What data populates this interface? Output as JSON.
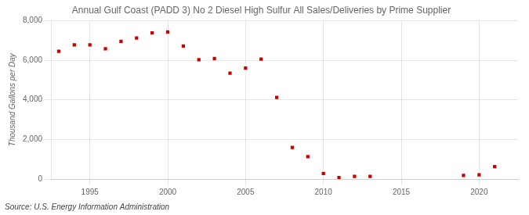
{
  "chart_data": {
    "type": "scatter",
    "title": "Annual Gulf Coast (PADD 3) No 2 Diesel High Sulfur All Sales/Deliveries by Prime Supplier",
    "y_label": "Thousand Gallons per Day",
    "annotations": [
      "Source: U.S. Energy Information Administration"
    ],
    "x": [
      1993,
      1994,
      1995,
      1996,
      1997,
      1998,
      1999,
      2000,
      2001,
      2002,
      2003,
      2004,
      2005,
      2006,
      2007,
      2008,
      2009,
      2010,
      2011,
      2012,
      2013,
      2019,
      2020,
      2021
    ],
    "values": [
      6450,
      6780,
      6780,
      6580,
      6950,
      7120,
      7380,
      7430,
      6720,
      6030,
      6090,
      5350,
      5600,
      6060,
      4120,
      1590,
      1130,
      285,
      70,
      130,
      130,
      185,
      215,
      630
    ],
    "color": "#cc0000",
    "marker": "square",
    "xlim": [
      1992.5,
      2022.5
    ],
    "xticks": [
      1995,
      2000,
      2005,
      2010,
      2015,
      2020
    ],
    "ylim": [
      0,
      8000
    ],
    "yticks": [
      0,
      {
        "value": 2000,
        "label": "2,000"
      },
      {
        "value": 4000,
        "label": "4,000"
      },
      {
        "value": 6000,
        "label": "6,000"
      },
      {
        "value": 8000,
        "label": "8,000"
      }
    ],
    "grid": true
  }
}
